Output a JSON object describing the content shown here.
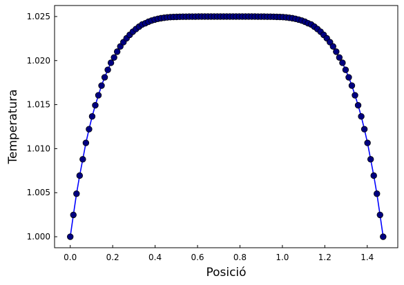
{
  "chart_data": {
    "type": "line",
    "title": "",
    "xlabel": "Posició",
    "ylabel": "Temperatura",
    "xlim": [
      -0.074,
      1.544
    ],
    "ylim": [
      0.99875,
      1.02625
    ],
    "xticks": [
      0.0,
      0.2,
      0.4,
      0.6,
      0.8,
      1.0,
      1.2,
      1.4
    ],
    "xtick_labels": [
      "0.0",
      "0.2",
      "0.4",
      "0.6",
      "0.8",
      "1.0",
      "1.2",
      "1.4"
    ],
    "yticks": [
      1.0,
      1.005,
      1.01,
      1.015,
      1.02,
      1.025
    ],
    "ytick_labels": [
      "1.000",
      "1.005",
      "1.010",
      "1.015",
      "1.020",
      "1.025"
    ],
    "grid": false,
    "series": [
      {
        "line_color": "#0000ff",
        "marker_color": "#000080",
        "marker": "circle",
        "x": [
          0.0,
          0.01475,
          0.0295,
          0.04425,
          0.059,
          0.07375,
          0.0885,
          0.10325,
          0.118,
          0.13275,
          0.1475,
          0.16225,
          0.177,
          0.19175,
          0.2065,
          0.22125,
          0.236,
          0.25075,
          0.2655,
          0.28025,
          0.295,
          0.30975,
          0.3245,
          0.33925,
          0.354,
          0.36875,
          0.3835,
          0.39825,
          0.413,
          0.42775,
          0.4425,
          0.45725,
          0.472,
          0.48675,
          0.5015,
          0.51625,
          0.531,
          0.54575,
          0.5605,
          0.57525,
          0.59,
          0.60475,
          0.6195,
          0.63425,
          0.649,
          0.66375,
          0.6785,
          0.69325,
          0.708,
          0.72275,
          0.7375,
          0.75225,
          0.767,
          0.78175,
          0.7965,
          0.81125,
          0.826,
          0.84075,
          0.8555,
          0.87025,
          0.885,
          0.89975,
          0.9145,
          0.92925,
          0.944,
          0.95875,
          0.9735,
          0.98825,
          1.003,
          1.01775,
          1.0325,
          1.04725,
          1.062,
          1.07675,
          1.0915,
          1.10625,
          1.121,
          1.13575,
          1.1505,
          1.16525,
          1.18,
          1.19475,
          1.2095,
          1.22425,
          1.239,
          1.25375,
          1.2685,
          1.28325,
          1.298,
          1.31275,
          1.3275,
          1.34225,
          1.357,
          1.37175,
          1.3865,
          1.40125,
          1.416,
          1.43075,
          1.4455,
          1.46025,
          1.475
        ],
        "y": [
          1.0,
          1.00248,
          1.00488,
          1.00694,
          1.00879,
          1.01065,
          1.01221,
          1.01366,
          1.01492,
          1.01606,
          1.01716,
          1.0181,
          1.01895,
          1.01975,
          1.02035,
          1.02101,
          1.0216,
          1.02209,
          1.02253,
          1.02292,
          1.02328,
          1.02358,
          1.02385,
          1.0241,
          1.02424,
          1.02441,
          1.02454,
          1.02465,
          1.02474,
          1.02481,
          1.02486,
          1.0249,
          1.02493,
          1.02495,
          1.02496,
          1.02497,
          1.02498,
          1.02498,
          1.02499,
          1.02499,
          1.02499,
          1.025,
          1.025,
          1.025,
          1.025,
          1.025,
          1.025,
          1.025,
          1.025,
          1.025,
          1.025,
          1.025,
          1.025,
          1.025,
          1.025,
          1.025,
          1.025,
          1.025,
          1.025,
          1.025,
          1.02499,
          1.02499,
          1.02499,
          1.02498,
          1.02498,
          1.02497,
          1.02496,
          1.02495,
          1.02493,
          1.0249,
          1.02486,
          1.02481,
          1.02474,
          1.02465,
          1.02454,
          1.02441,
          1.02424,
          1.0241,
          1.02385,
          1.02358,
          1.02328,
          1.02292,
          1.02253,
          1.02209,
          1.0216,
          1.02101,
          1.02035,
          1.01975,
          1.01895,
          1.0181,
          1.01716,
          1.01606,
          1.01492,
          1.01366,
          1.01221,
          1.01065,
          1.00879,
          1.00694,
          1.00488,
          1.00248,
          1.0
        ]
      }
    ]
  }
}
